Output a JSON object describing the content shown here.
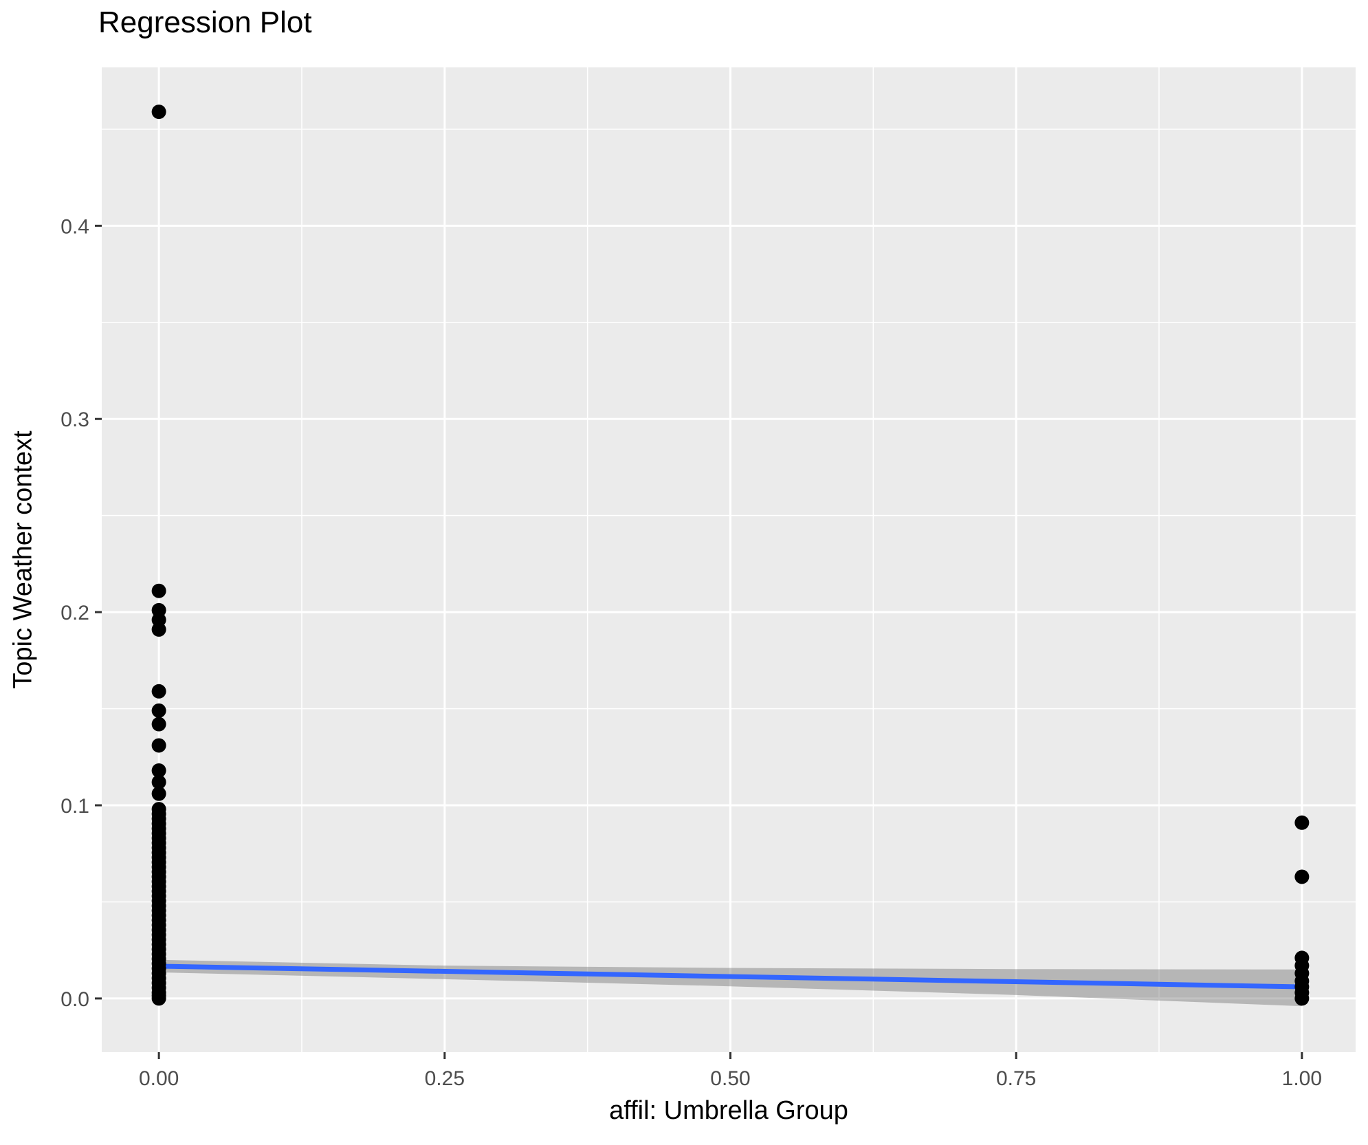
{
  "chart_data": {
    "type": "scatter",
    "title": "Regression Plot",
    "xlabel": "affil: Umbrella Group",
    "ylabel": "Topic Weather context",
    "xlim": [
      -0.05,
      1.047
    ],
    "ylim": [
      -0.0278,
      0.482
    ],
    "grid": true,
    "legend_position": "none",
    "x_major_ticks": [
      0,
      0.25,
      0.5,
      0.75,
      1.0
    ],
    "x_tick_labels": [
      "0.00",
      "0.25",
      "0.50",
      "0.75",
      "1.00"
    ],
    "x_minor_ticks": [
      0.125,
      0.375,
      0.625,
      0.875
    ],
    "y_major_ticks": [
      0,
      0.1,
      0.2,
      0.3,
      0.4
    ],
    "y_tick_labels": [
      "0.0",
      "0.1",
      "0.2",
      "0.3",
      "0.4"
    ],
    "y_minor_ticks": [
      0.05,
      0.15,
      0.25,
      0.35,
      0.45
    ],
    "series": [
      {
        "name": "observations affil=0",
        "type": "scatter",
        "x_value": 0,
        "y_values": [
          0.459,
          0.211,
          0.201,
          0.196,
          0.191,
          0.159,
          0.149,
          0.142,
          0.131,
          0.118,
          0.112,
          0.106,
          0.098,
          0.0955,
          0.093,
          0.0905,
          0.088,
          0.0855,
          0.083,
          0.0805,
          0.078,
          0.0755,
          0.073,
          0.0705,
          0.068,
          0.0655,
          0.063,
          0.0605,
          0.058,
          0.0555,
          0.053,
          0.0505,
          0.048,
          0.0455,
          0.043,
          0.0405,
          0.038,
          0.0355,
          0.033,
          0.0305,
          0.028,
          0.0255,
          0.023,
          0.0205,
          0.018,
          0.0155,
          0.013,
          0.0105,
          0.008,
          0.0055,
          0.003,
          0.0015,
          0.0
        ]
      },
      {
        "name": "observations affil=1",
        "type": "scatter",
        "x_value": 1,
        "y_values": [
          0.091,
          0.063,
          0.021,
          0.017,
          0.013,
          0.009,
          0.006,
          0.003,
          0.0
        ]
      },
      {
        "name": "regression line",
        "type": "line",
        "x": [
          0,
          1
        ],
        "y": [
          0.0167,
          0.006
        ]
      },
      {
        "name": "confidence band",
        "type": "area",
        "x": [
          0,
          0.25,
          0.5,
          0.75,
          1
        ],
        "upper": [
          0.02,
          0.017,
          0.0158,
          0.0152,
          0.015
        ],
        "lower": [
          0.0135,
          0.01,
          0.0063,
          0.0018,
          -0.004
        ]
      }
    ],
    "colors": {
      "point": "#000000",
      "line": "#3366FF",
      "band": "rgba(102,102,102,0.4)",
      "panel": "#EBEBEB",
      "grid": "#FFFFFF",
      "tick_text": "#4D4D4D",
      "tick_mark": "#333333",
      "title_text": "#000000"
    }
  }
}
